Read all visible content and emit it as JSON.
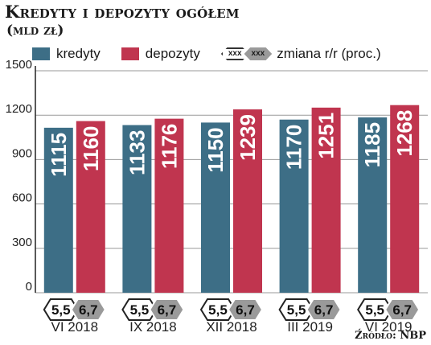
{
  "title": "Kredyty i depozyty ogółem",
  "subtitle": "(mld zł)",
  "legend": {
    "kredyty": "kredyty",
    "depozyty": "depozyty",
    "change_sample_1": "xxx",
    "change_sample_2": "xxx",
    "change_label": "zmiana r/r (proc.)"
  },
  "source": "Źródło: NBP",
  "colors": {
    "kredyty": "#3d6e86",
    "depozyty": "#c0354f",
    "change_grey": "#9a9a9a",
    "grid": "#9a9a9a"
  },
  "chart_data": {
    "type": "bar",
    "title": "Kredyty i depozyty ogółem",
    "subtitle": "(mld zł)",
    "categories": [
      "VI 2018",
      "IX 2018",
      "XII 2018",
      "III 2019",
      "VI 2019"
    ],
    "series": [
      {
        "name": "kredyty",
        "values": [
          1115,
          1133,
          1150,
          1170,
          1185
        ],
        "change_yoy": [
          "5,5",
          "5,5",
          "5,5",
          "5,5",
          "5,5"
        ]
      },
      {
        "name": "depozyty",
        "values": [
          1160,
          1176,
          1239,
          1251,
          1268
        ],
        "change_yoy": [
          "6,7",
          "6,7",
          "6,7",
          "6,7",
          "6,7"
        ]
      }
    ],
    "yticks": [
      "0",
      "300",
      "600",
      "900",
      "1200",
      "1500"
    ],
    "ylim": [
      0,
      1500
    ],
    "grid": true,
    "legend_position": "top"
  }
}
